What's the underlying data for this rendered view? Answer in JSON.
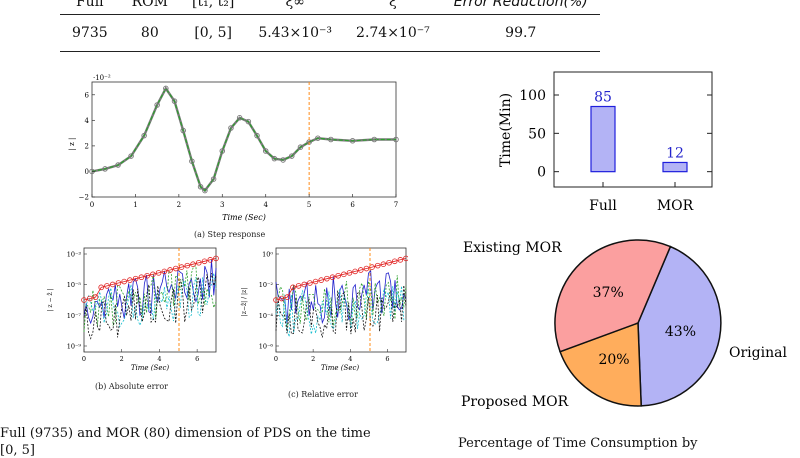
{
  "table": {
    "headers": [
      "Full",
      "ROM",
      "[t₁, t₂]",
      "ξ∞",
      "ξ",
      "Error Reduction(%)"
    ],
    "row": [
      "9735",
      "80",
      "[0, 5]",
      "5.43×10⁻³",
      "2.74×10⁻⁷",
      "99.7"
    ]
  },
  "captions": {
    "step": "(a) Step response",
    "abs": "(b) Absolute error",
    "rel": "(c) Relative error"
  },
  "bottom_text": {
    "left": "Full (9735) and MOR (80) dimension of PDS on the time",
    "left_cont": "[0, 5]",
    "right": "Percentage of Time Consumption by"
  },
  "chart_data": [
    {
      "type": "line",
      "title": "",
      "xlabel": "Time (Sec)",
      "ylabel": "| z |",
      "y_scale_note": "·10⁻²",
      "xlim": [
        0,
        7
      ],
      "ylim": [
        -2,
        7
      ],
      "xticks": [
        "0",
        "1",
        "2",
        "3",
        "4",
        "5",
        "6",
        "7"
      ],
      "yticks": [
        "−2",
        "0",
        "2",
        "4",
        "6"
      ],
      "vline_x": 5,
      "series": [
        {
          "x": [
            0,
            0.3,
            0.6,
            0.9,
            1.2,
            1.5,
            1.7,
            1.9,
            2.1,
            2.3,
            2.5,
            2.6,
            2.8,
            3.0,
            3.2,
            3.4,
            3.6,
            3.8,
            4.0,
            4.2,
            4.4,
            4.6,
            4.8,
            5.0,
            5.2,
            5.5,
            6.0,
            6.5,
            7.0
          ],
          "values": [
            0,
            0.2,
            0.5,
            1.2,
            2.8,
            5.2,
            6.5,
            5.5,
            3.2,
            0.8,
            -1.2,
            -1.5,
            -0.6,
            1.6,
            3.4,
            4.2,
            3.9,
            2.8,
            1.6,
            1.0,
            0.9,
            1.2,
            1.9,
            2.3,
            2.6,
            2.5,
            2.4,
            2.5,
            2.5
          ]
        }
      ]
    },
    {
      "type": "bar",
      "categories": [
        "Full",
        "MOR"
      ],
      "values": [
        85,
        12
      ],
      "ylabel": "Time(Min)",
      "ylim": [
        -20,
        130
      ],
      "yticks": [
        "0",
        "50",
        "100"
      ],
      "color": "#b3b3f5"
    },
    {
      "type": "pie",
      "slices": [
        {
          "label": "Original",
          "value": 43,
          "text": "43%",
          "color": "#b3b3f5"
        },
        {
          "label": "Proposed MOR",
          "value": 20,
          "text": "20%",
          "color": "#ffad5c"
        },
        {
          "label": "Existing MOR",
          "value": 37,
          "text": "37%",
          "color": "#fb9f9f"
        }
      ]
    },
    {
      "type": "line",
      "title": "",
      "xlabel": "Time (Sec)",
      "ylabel": "| z − ẑ |",
      "y_scale": "log",
      "xticks": [
        "0",
        "2",
        "4",
        "6"
      ],
      "yticks": [
        "10⁻³",
        "10⁻⁵",
        "10⁻⁷",
        "10⁻⁹"
      ],
      "vline_x": 5
    },
    {
      "type": "line",
      "title": "",
      "xlabel": "Time (Sec)",
      "ylabel": "|z−ẑ| / |z|",
      "y_scale": "log",
      "xticks": [
        "0",
        "2",
        "4",
        "6"
      ],
      "yticks": [
        "10⁰",
        "10⁻²",
        "10⁻⁴",
        "10⁻⁶"
      ],
      "vline_x": 5
    }
  ]
}
